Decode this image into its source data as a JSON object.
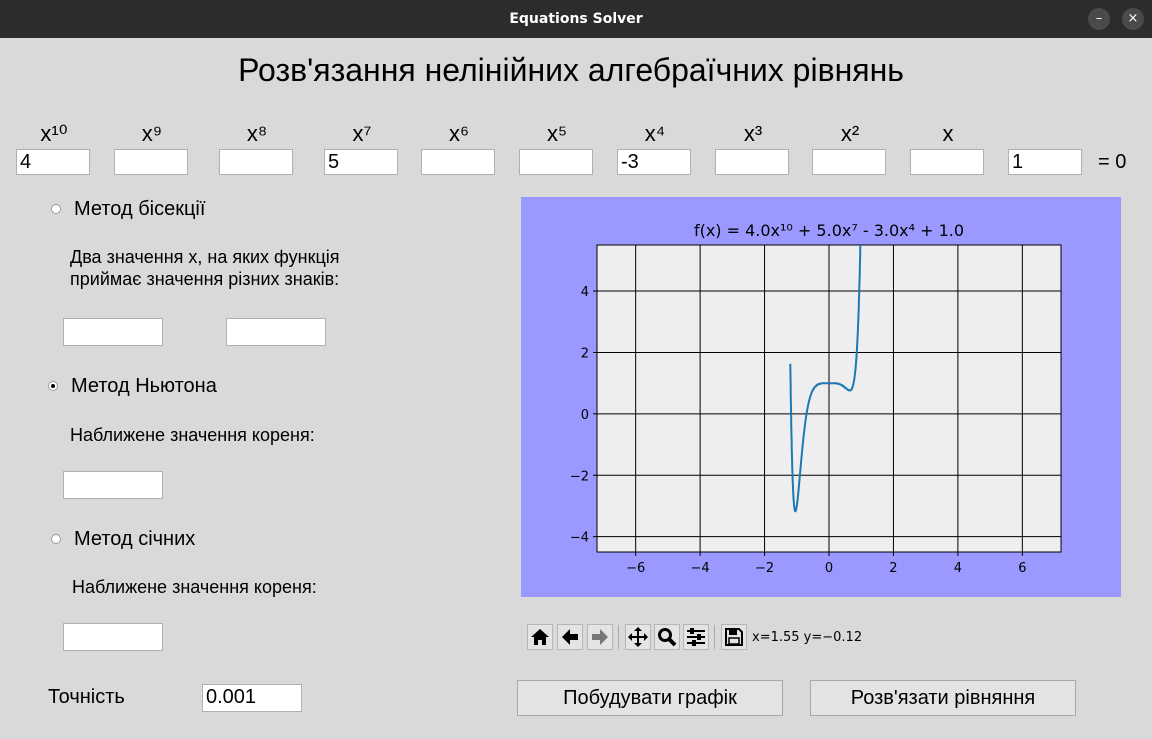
{
  "window": {
    "title": "Equations Solver",
    "minimize_glyph": "–",
    "close_glyph": "×"
  },
  "heading": "Розв'язання нелінійних алгебраїчних рівнянь",
  "powers": [
    "x¹⁰",
    "x⁹",
    "x⁸",
    "x⁷",
    "x⁶",
    "x⁵",
    "x⁴",
    "x³",
    "x²",
    "x"
  ],
  "coefficients": [
    "4",
    "",
    "",
    "5",
    "",
    "",
    "-3",
    "",
    "",
    "",
    "1"
  ],
  "equals_zero": "= 0",
  "methods": {
    "bisection": {
      "label": "Метод бісекції",
      "description_line1": "Два значення x, на яких функція",
      "description_line2": "приймає значення різних знаків:",
      "a_value": "",
      "b_value": "",
      "selected": false
    },
    "newton": {
      "label": "Метод Ньютона",
      "description": "Наближене значення кореня:",
      "value": "",
      "selected": true
    },
    "secant": {
      "label": "Метод січних",
      "description": "Наближене значення кореня:",
      "value": "",
      "selected": false
    }
  },
  "precision": {
    "label": "Точність",
    "value": "0.001"
  },
  "buttons": {
    "plot": "Побудувати графік",
    "solve": "Розв'язати рівняння"
  },
  "toolbar": {
    "icons": [
      "home-icon",
      "back-icon",
      "forward-icon",
      "pan-icon",
      "zoom-icon",
      "configure-subplots-icon",
      "save-icon"
    ],
    "coords": "x=1.55 y=−0.12"
  },
  "colors": {
    "plot_panel_bg": "#9999ff",
    "axes_bg": "#eeeeee",
    "line": "#1f77b4"
  },
  "chart_data": {
    "type": "line",
    "title": "f(x) = 4.0x¹⁰ + 5.0x⁷ - 3.0x⁴ + 1.0",
    "coefficients_desc": [
      4,
      0,
      0,
      5,
      0,
      0,
      -3,
      0,
      0,
      0,
      1
    ],
    "xlim": [
      -7.2,
      7.2
    ],
    "ylim": [
      -4.5,
      5.5
    ],
    "xticks": [
      -6,
      -4,
      -2,
      0,
      2,
      4,
      6
    ],
    "yticks": [
      -4,
      -2,
      0,
      2,
      4
    ],
    "xtick_labels": [
      "−6",
      "−4",
      "−2",
      "0",
      "2",
      "4",
      "6"
    ],
    "ytick_labels": [
      "−4",
      "−2",
      "0",
      "2",
      "4"
    ],
    "grid": true
  }
}
